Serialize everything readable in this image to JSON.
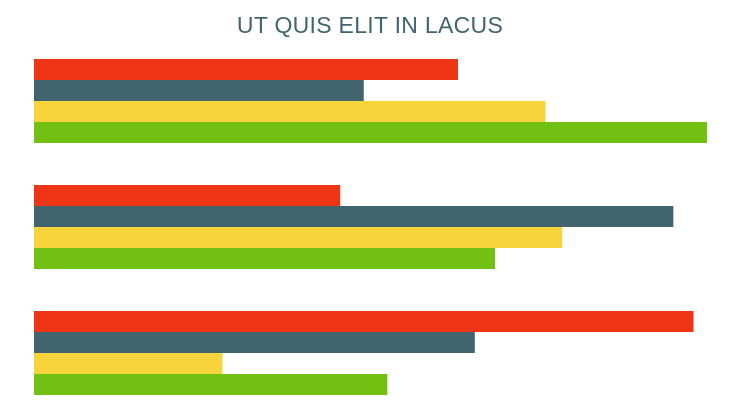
{
  "chart_data": {
    "type": "bar",
    "orientation": "horizontal",
    "title": "UT QUIS ELIT IN LACUS",
    "xlabel": "",
    "ylabel": "",
    "grid": false,
    "xlim": [
      0,
      100
    ],
    "series": [
      {
        "values": [
          63,
          45.5,
          98
        ],
        "color": "#ee3616"
      },
      {
        "values": [
          49,
          95,
          65.5
        ],
        "color": "#41646f"
      },
      {
        "values": [
          76,
          78.5,
          28
        ],
        "color": "#f7d43b"
      },
      {
        "values": [
          100,
          68.5,
          52.5
        ],
        "color": "#72c012"
      }
    ]
  }
}
